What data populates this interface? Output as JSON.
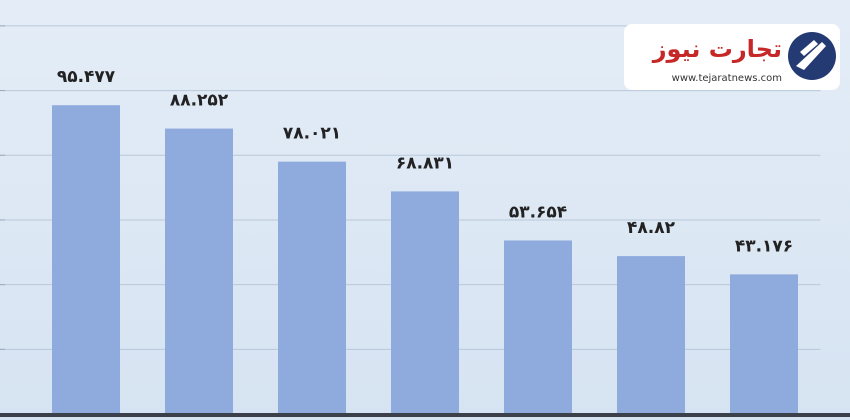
{
  "chart_data": {
    "type": "bar",
    "categories": [
      null,
      null,
      null,
      null,
      null,
      null,
      null
    ],
    "values": [
      95.477,
      88.252,
      78.021,
      68.831,
      53.654,
      48.82,
      43.176
    ],
    "value_labels": [
      "۹۵.۴۷۷",
      "۸۸.۲۵۲",
      "۷۸.۰۲۱",
      "۶۸.۸۳۱",
      "۵۳.۶۵۴",
      "۴۸.۸۲",
      "۴۳.۱۷۶"
    ],
    "color": "#8fabdd",
    "ylim": [
      0,
      128
    ],
    "yticks": [
      0,
      20,
      40,
      60,
      80,
      100,
      120
    ],
    "grid": true
  },
  "logo": {
    "name": "تجارت نیوز",
    "url": "www.tejaratnews.com"
  }
}
